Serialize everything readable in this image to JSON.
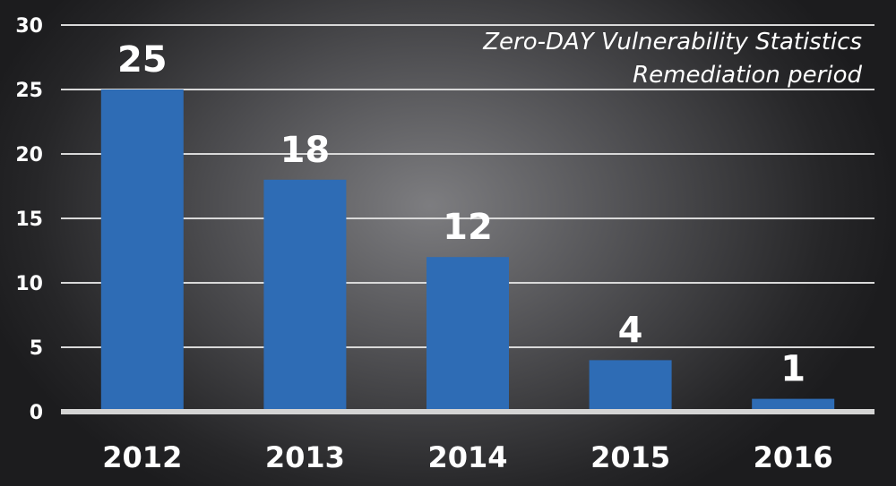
{
  "chart_data": {
    "type": "bar",
    "title": "Zero-DAY Vulnerability Statistics",
    "subtitle": "Remediation period",
    "categories": [
      "2012",
      "2013",
      "2014",
      "2015",
      "2016"
    ],
    "values": [
      25,
      18,
      12,
      4,
      1
    ],
    "ylim": [
      0,
      30
    ],
    "yticks": [
      0,
      5,
      10,
      15,
      20,
      25,
      30
    ],
    "grid": true,
    "data_labels": true,
    "bar_color": "#2e6cb5",
    "grid_color": "#d9d9d9"
  }
}
